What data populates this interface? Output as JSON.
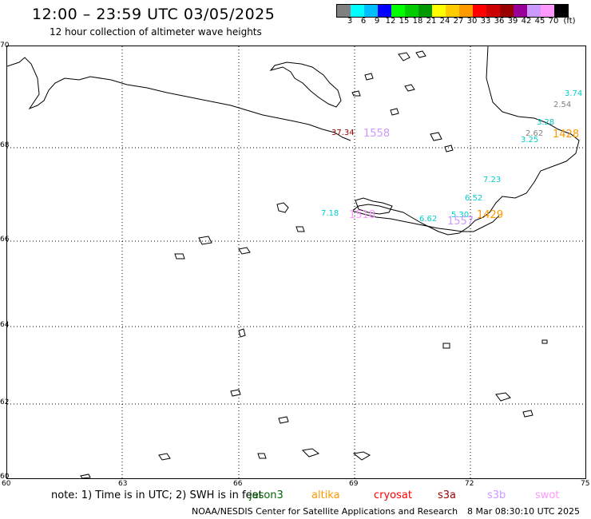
{
  "header": {
    "title": "12:00 – 23:59 UTC 03/05/2025",
    "subtitle": "12 hour collection of altimeter wave heights"
  },
  "legend": {
    "colors": [
      "#808080",
      "#00ffff",
      "#00bfff",
      "#0000ff",
      "#00ff00",
      "#00cc00",
      "#009900",
      "#ffff00",
      "#ffcc00",
      "#ff9900",
      "#ff0000",
      "#cc0000",
      "#990000",
      "#990099",
      "#cc99ff",
      "#ff99ff",
      "#000000"
    ],
    "ticks": [
      "3",
      "6",
      "9",
      "12",
      "15",
      "18",
      "21",
      "24",
      "27",
      "30",
      "33",
      "36",
      "39",
      "42",
      "45",
      "70"
    ],
    "unit": "(ft)"
  },
  "map": {
    "lat_labels": [
      "70",
      "68",
      "66",
      "64",
      "62",
      "60"
    ],
    "lon_labels": [
      "63",
      "66",
      "69",
      "72",
      "75"
    ],
    "corner_lon": "60",
    "observations": [
      {
        "text": "3.74",
        "color": "#00cccc",
        "big": false
      },
      {
        "text": "2.54",
        "color": "#808080",
        "big": false
      },
      {
        "text": "3.28",
        "color": "#00cccc",
        "big": false
      },
      {
        "text": "2.62",
        "color": "#808080",
        "big": false
      },
      {
        "text": "3.25",
        "color": "#00cccc",
        "big": false
      },
      {
        "text": "1428",
        "color": "#ff9900",
        "big": true
      },
      {
        "text": "37.34",
        "color": "#990000",
        "big": false
      },
      {
        "text": "1558",
        "color": "#cc99ff",
        "big": true
      },
      {
        "text": "7.23",
        "color": "#00cccc",
        "big": false
      },
      {
        "text": "6.52",
        "color": "#00cccc",
        "big": false
      },
      {
        "text": "7.18",
        "color": "#00cccc",
        "big": false
      },
      {
        "text": "1518",
        "color": "#ff99ff",
        "big": true
      },
      {
        "text": "6.62",
        "color": "#00cccc",
        "big": false
      },
      {
        "text": "5.30",
        "color": "#00cccc",
        "big": false
      },
      {
        "text": "1557",
        "color": "#cc99ff",
        "big": true
      },
      {
        "text": "1429",
        "color": "#ff9900",
        "big": true
      }
    ]
  },
  "note": "note: 1) Time is in UTC; 2) SWH is in feet",
  "satellites": [
    {
      "name": "jason3",
      "color": "#006600"
    },
    {
      "name": "altika",
      "color": "#ff9900"
    },
    {
      "name": "cryosat",
      "color": "#ff0000"
    },
    {
      "name": "s3a",
      "color": "#990000"
    },
    {
      "name": "s3b",
      "color": "#cc99ff"
    },
    {
      "name": "swot",
      "color": "#ff99ff"
    }
  ],
  "footer": {
    "credit": "NOAA/NESDIS Center for Satellite Applications and Research",
    "timestamp": "8 Mar 08:30:10 UTC 2025"
  }
}
